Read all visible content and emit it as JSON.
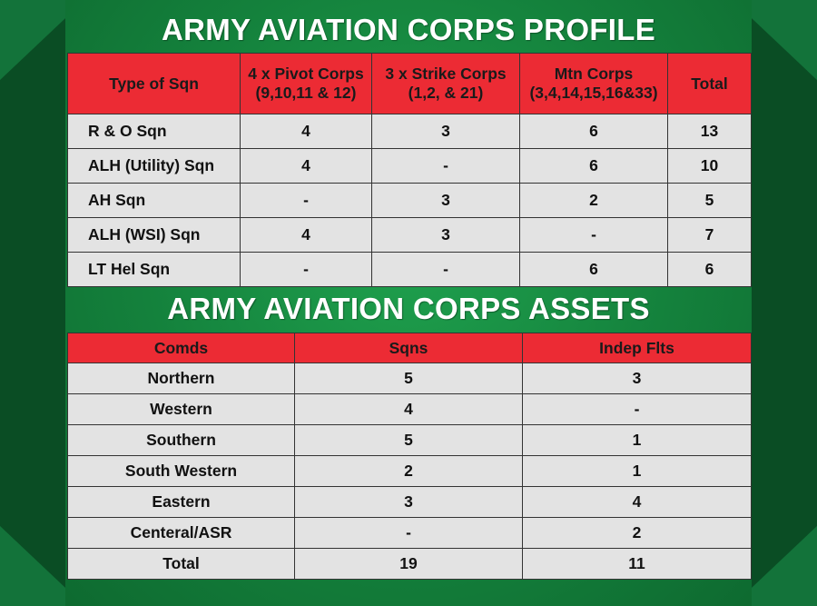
{
  "profile": {
    "title": "ARMY AVIATION CORPS PROFILE",
    "headers": [
      [
        "Type of Sqn",
        ""
      ],
      [
        "4 x Pivot Corps",
        "(9,10,11 & 12)"
      ],
      [
        "3 x Strike Corps",
        "(1,2, & 21)"
      ],
      [
        "Mtn Corps",
        "(3,4,14,15,16&33)"
      ],
      [
        "Total",
        ""
      ]
    ],
    "rows": [
      [
        "R & O Sqn",
        "4",
        "3",
        "6",
        "13"
      ],
      [
        "ALH (Utility) Sqn",
        "4",
        "-",
        "6",
        "10"
      ],
      [
        "AH Sqn",
        "-",
        "3",
        "2",
        "5"
      ],
      [
        "ALH (WSI) Sqn",
        "4",
        "3",
        "-",
        "7"
      ],
      [
        "LT Hel Sqn",
        "-",
        "-",
        "6",
        "6"
      ]
    ]
  },
  "assets": {
    "title": "ARMY AVIATION CORPS ASSETS",
    "headers": [
      "Comds",
      "Sqns",
      "Indep Flts"
    ],
    "rows": [
      [
        "Northern",
        "5",
        "3"
      ],
      [
        "Western",
        "4",
        "-"
      ],
      [
        "Southern",
        "5",
        "1"
      ],
      [
        "South Western",
        "2",
        "1"
      ],
      [
        "Eastern",
        "3",
        "4"
      ],
      [
        "Centeral/ASR",
        "-",
        "2"
      ],
      [
        "Total",
        "19",
        "11"
      ]
    ]
  },
  "colors": {
    "header_red": "#ec2b34",
    "cell_grey": "#e3e3e3",
    "panel_green": "#14813c",
    "frame_dark_green": "#0d5a2a"
  }
}
